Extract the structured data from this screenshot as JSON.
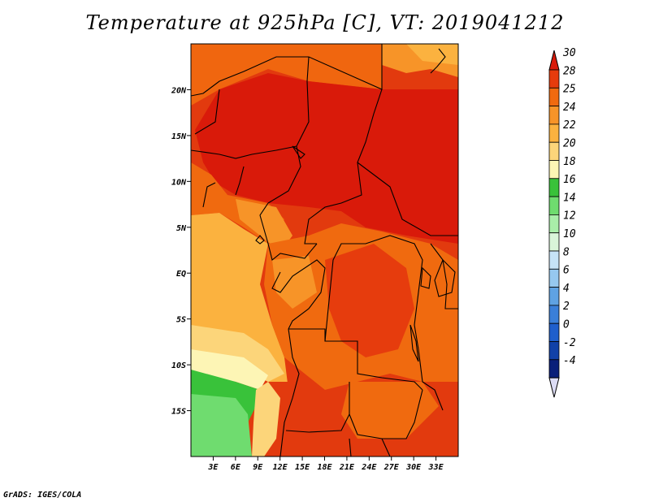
{
  "title": "Temperature at 925hPa [C], VT: 2019041212",
  "credit": "GrADS: IGES/COLA",
  "map": {
    "lon_range": [
      0,
      36
    ],
    "lat_range": [
      -20,
      25
    ],
    "lon_ticks": [
      "3E",
      "6E",
      "9E",
      "12E",
      "15E",
      "18E",
      "21E",
      "24E",
      "27E",
      "30E",
      "33E"
    ],
    "lon_tick_values": [
      3,
      6,
      9,
      12,
      15,
      18,
      21,
      24,
      27,
      30,
      33
    ],
    "lat_ticks": [
      "20N",
      "15N",
      "10N",
      "5N",
      "EQ",
      "5S",
      "10S",
      "15S"
    ],
    "lat_tick_values": [
      20,
      15,
      10,
      5,
      0,
      -5,
      -10,
      -15
    ]
  },
  "colorbar": {
    "labels": [
      "30",
      "28",
      "25",
      "24",
      "22",
      "20",
      "18",
      "16",
      "14",
      "12",
      "10",
      "8",
      "6",
      "4",
      "2",
      "0",
      "-2",
      "-4"
    ],
    "colors": [
      "#d91a0a",
      "#e63c0d",
      "#f06a0f",
      "#f79428",
      "#fbb23f",
      "#fcd57a",
      "#fdf5b5",
      "#39c23a",
      "#6fdc6f",
      "#a9eea9",
      "#d9f5d9",
      "#c6e3f7",
      "#96c8ef",
      "#5fa2e3",
      "#3a7fd9",
      "#1f5fcc",
      "#1141a8",
      "#0a1f7a",
      "#dcdcf5"
    ]
  }
}
